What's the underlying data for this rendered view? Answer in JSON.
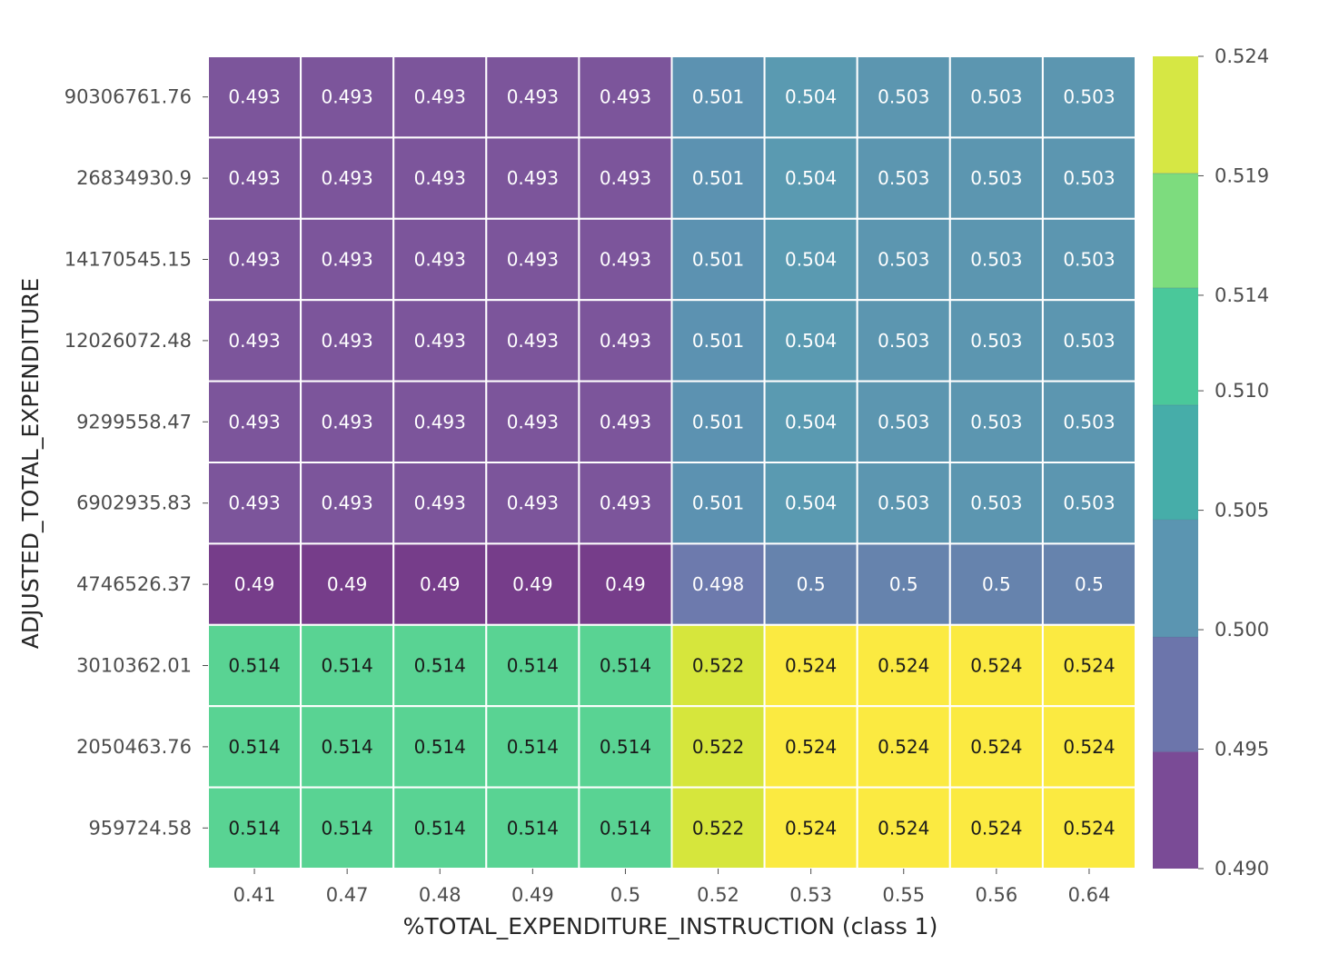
{
  "chart_data": {
    "type": "heatmap",
    "title": "",
    "xlabel": "%TOTAL_EXPENDITURE_INSTRUCTION (class 1)",
    "ylabel": "ADJUSTED_TOTAL_EXPENDITURE",
    "x_categories": [
      "0.41",
      "0.47",
      "0.48",
      "0.49",
      "0.5",
      "0.52",
      "0.53",
      "0.55",
      "0.56",
      "0.64"
    ],
    "y_categories": [
      "90306761.76",
      "26834930.9",
      "14170545.15",
      "12026072.48",
      "9299558.47",
      "6902935.83",
      "4746526.37",
      "3010362.01",
      "2050463.76",
      "959724.58"
    ],
    "values": [
      [
        "0.493",
        "0.493",
        "0.493",
        "0.493",
        "0.493",
        "0.501",
        "0.504",
        "0.503",
        "0.503",
        "0.503"
      ],
      [
        "0.493",
        "0.493",
        "0.493",
        "0.493",
        "0.493",
        "0.501",
        "0.504",
        "0.503",
        "0.503",
        "0.503"
      ],
      [
        "0.493",
        "0.493",
        "0.493",
        "0.493",
        "0.493",
        "0.501",
        "0.504",
        "0.503",
        "0.503",
        "0.503"
      ],
      [
        "0.493",
        "0.493",
        "0.493",
        "0.493",
        "0.493",
        "0.501",
        "0.504",
        "0.503",
        "0.503",
        "0.503"
      ],
      [
        "0.493",
        "0.493",
        "0.493",
        "0.493",
        "0.493",
        "0.501",
        "0.504",
        "0.503",
        "0.503",
        "0.503"
      ],
      [
        "0.493",
        "0.493",
        "0.493",
        "0.493",
        "0.493",
        "0.501",
        "0.504",
        "0.503",
        "0.503",
        "0.503"
      ],
      [
        "0.49",
        "0.49",
        "0.49",
        "0.49",
        "0.49",
        "0.498",
        "0.5",
        "0.5",
        "0.5",
        "0.5"
      ],
      [
        "0.514",
        "0.514",
        "0.514",
        "0.514",
        "0.514",
        "0.522",
        "0.524",
        "0.524",
        "0.524",
        "0.524"
      ],
      [
        "0.514",
        "0.514",
        "0.514",
        "0.514",
        "0.514",
        "0.522",
        "0.524",
        "0.524",
        "0.524",
        "0.524"
      ],
      [
        "0.514",
        "0.514",
        "0.514",
        "0.514",
        "0.514",
        "0.522",
        "0.524",
        "0.524",
        "0.524",
        "0.524"
      ]
    ],
    "colorbar": {
      "min": 0.49,
      "max": 0.524,
      "ticks": [
        "0.490",
        "0.495",
        "0.500",
        "0.505",
        "0.510",
        "0.514",
        "0.519",
        "0.524"
      ],
      "bands": [
        {
          "from": 0.49,
          "to": 0.4949,
          "color": "#7a4b96"
        },
        {
          "from": 0.4949,
          "to": 0.4997,
          "color": "#6c75ab"
        },
        {
          "from": 0.4997,
          "to": 0.5046,
          "color": "#5b95b1"
        },
        {
          "from": 0.5046,
          "to": 0.5094,
          "color": "#46ada9"
        },
        {
          "from": 0.5094,
          "to": 0.5143,
          "color": "#4ac89a"
        },
        {
          "from": 0.5143,
          "to": 0.5191,
          "color": "#7ddc7e"
        },
        {
          "from": 0.5191,
          "to": 0.524,
          "color": "#d6e744"
        }
      ]
    },
    "cell_colors": {
      "0.49": "#763d8a",
      "0.493": "#7c559b",
      "0.498": "#6d7aad",
      "0.5": "#6683ad",
      "0.501": "#5c92b1",
      "0.503": "#5c96b0",
      "0.504": "#5a9ab1",
      "0.514": "#59d393",
      "0.522": "#d6e63c",
      "0.524": "#fbea41"
    },
    "dark_text_values": [
      "0.514",
      "0.522",
      "0.524"
    ],
    "text_colors": {
      "light": "#ffffff",
      "dark": "#1a1a1a"
    },
    "grid": false,
    "legend": "colorbar right"
  }
}
